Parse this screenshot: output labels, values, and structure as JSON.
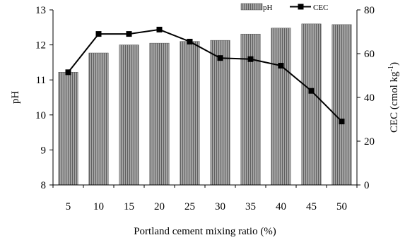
{
  "chart_data": {
    "type": "bar+line",
    "categories": [
      "5",
      "10",
      "15",
      "20",
      "25",
      "30",
      "35",
      "40",
      "45",
      "50"
    ],
    "series": [
      {
        "name": "pH",
        "type": "bar",
        "axis": "left",
        "values": [
          11.22,
          11.77,
          12.0,
          12.05,
          12.1,
          12.13,
          12.31,
          12.48,
          12.6,
          12.58
        ]
      },
      {
        "name": "CEC",
        "type": "line",
        "axis": "right",
        "values": [
          51.5,
          69,
          69,
          71,
          65.5,
          58,
          57.5,
          54.5,
          43,
          29
        ]
      }
    ],
    "xlabel": "Portland cement mixing ratio (%)",
    "ylabel_left": "pH",
    "ylabel_right": "CEC (cmol kg",
    "ylabel_right_sup": "-1",
    "ylabel_right_suffix": ")",
    "ylim_left": [
      8,
      13
    ],
    "yticks_left": [
      "8",
      "9",
      "10",
      "11",
      "12",
      "13"
    ],
    "ylim_right": [
      0,
      80
    ],
    "yticks_right": [
      "0",
      "20",
      "40",
      "60",
      "80"
    ],
    "legend_position": "top-right",
    "grid": false,
    "colors": {
      "bar_fill": "#9a9a9a",
      "bar_stripe": "#5e5e5e",
      "line": "#000000"
    }
  }
}
